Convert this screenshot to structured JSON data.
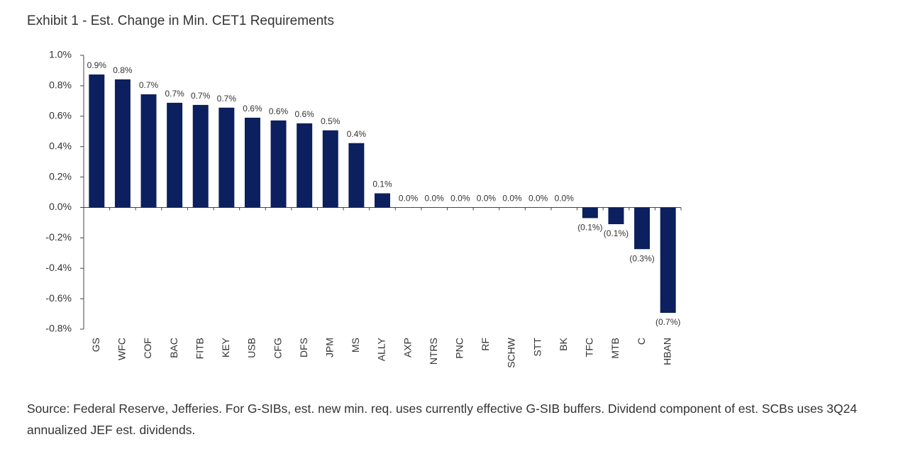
{
  "chart_data": {
    "type": "bar",
    "title": "Exhibit 1 - Est. Change in Min. CET1 Requirements",
    "categories": [
      "GS",
      "WFC",
      "COF",
      "BAC",
      "FITB",
      "KEY",
      "USB",
      "CFG",
      "DFS",
      "JPM",
      "MS",
      "ALLY",
      "AXP",
      "NTRS",
      "PNC",
      "RF",
      "SCHW",
      "STT",
      "BK",
      "TFC",
      "MTB",
      "C",
      "HBAN"
    ],
    "values": [
      0.874,
      0.842,
      0.744,
      0.688,
      0.674,
      0.656,
      0.59,
      0.572,
      0.553,
      0.507,
      0.423,
      0.093,
      0,
      0,
      0,
      0,
      0,
      0,
      0,
      -0.07,
      -0.11,
      -0.274,
      -0.693
    ],
    "value_labels": [
      "0.9%",
      "0.8%",
      "0.7%",
      "0.7%",
      "0.7%",
      "0.7%",
      "0.6%",
      "0.6%",
      "0.6%",
      "0.5%",
      "0.4%",
      "0.1%",
      "0.0%",
      "0.0%",
      "0.0%",
      "0.0%",
      "0.0%",
      "0.0%",
      "0.0%",
      "(0.1%)",
      "(0.1%)",
      "(0.3%)",
      "(0.7%)"
    ],
    "color": "#0c1f5e",
    "ylim": [
      -0.8,
      1.0
    ],
    "yticks": [
      {
        "value": -0.8,
        "label": "-0.8%"
      },
      {
        "value": -0.6,
        "label": "-0.6%"
      },
      {
        "value": -0.4,
        "label": "-0.4%"
      },
      {
        "value": -0.2,
        "label": "-0.2%"
      },
      {
        "value": 0,
        "label": "0.0%"
      },
      {
        "value": 0.2,
        "label": "0.2%"
      },
      {
        "value": 0.4,
        "label": "0.4%"
      },
      {
        "value": 0.6,
        "label": "0.6%"
      },
      {
        "value": 0.8,
        "label": "0.8%"
      },
      {
        "value": 1.0,
        "label": "1.0%"
      }
    ],
    "source": "Source: Federal Reserve, Jefferies. For G-SIBs, est. new min. req. uses currently effective G-SIB buffers. Dividend component of est. SCBs uses 3Q24 annualized JEF est. dividends."
  }
}
